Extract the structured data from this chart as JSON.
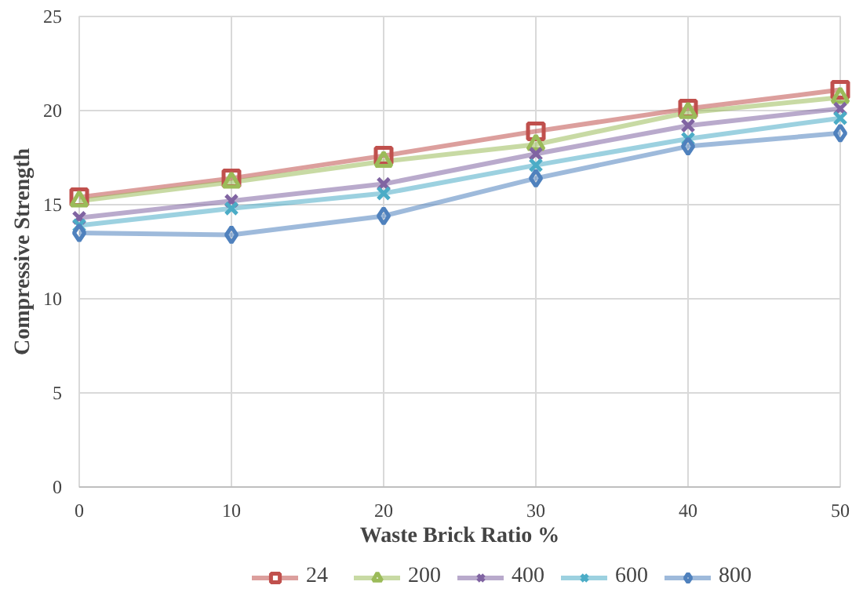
{
  "chart_data": {
    "type": "line",
    "xlabel": "Waste Brick Ratio %",
    "ylabel": "Compressive Strength",
    "x": [
      0,
      10,
      20,
      30,
      40,
      50
    ],
    "xlim": [
      0,
      50
    ],
    "xticks": [
      0,
      10,
      20,
      30,
      40,
      50
    ],
    "ylim": [
      0,
      25
    ],
    "yticks": [
      0,
      5,
      10,
      15,
      20,
      25
    ],
    "grid": true,
    "legend": "bottom",
    "series": [
      {
        "name": "24",
        "color": "#c0504d",
        "marker": "square",
        "values": [
          15.4,
          16.4,
          17.6,
          18.9,
          20.1,
          21.1
        ]
      },
      {
        "name": "200",
        "color": "#9bbb59",
        "marker": "triangle",
        "values": [
          15.2,
          16.2,
          17.3,
          18.2,
          19.9,
          20.7
        ]
      },
      {
        "name": "400",
        "color": "#8064a2",
        "marker": "cross",
        "values": [
          14.3,
          15.2,
          16.1,
          17.7,
          19.2,
          20.1
        ]
      },
      {
        "name": "600",
        "color": "#4bacc6",
        "marker": "cross",
        "values": [
          13.9,
          14.8,
          15.6,
          17.1,
          18.5,
          19.6
        ]
      },
      {
        "name": "800",
        "color": "#4f81bd",
        "marker": "diamond",
        "values": [
          13.5,
          13.4,
          14.4,
          16.4,
          18.1,
          18.8
        ]
      }
    ]
  }
}
